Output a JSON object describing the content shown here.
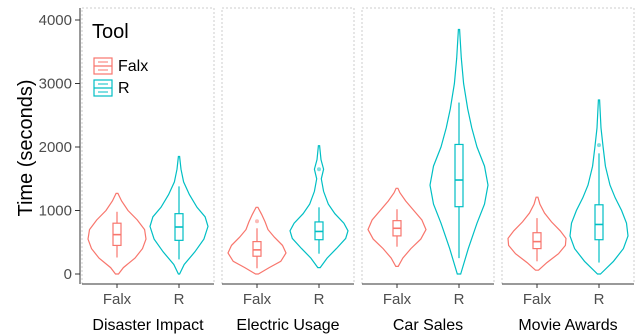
{
  "chart_data": {
    "type": "violin",
    "ylabel": "Time (seconds)",
    "ylim": [
      0,
      4000
    ],
    "yticks": [
      0,
      1000,
      2000,
      3000,
      4000
    ],
    "legend": {
      "title": "Tool",
      "position": "top-left",
      "entries": [
        {
          "name": "Falx",
          "color": "#F8766D"
        },
        {
          "name": "R",
          "color": "#00BFC4"
        }
      ]
    },
    "grid": "none",
    "facets": [
      {
        "label": "Disaster Impact",
        "groups": [
          {
            "tool": "Falx",
            "min": 0,
            "max": 1270,
            "q1": 450,
            "median": 620,
            "q3": 800,
            "whisker_low": 260,
            "whisker_high": 980,
            "density": [
              [
                0,
                0.05
              ],
              [
                100,
                0.22
              ],
              [
                250,
                0.62
              ],
              [
                400,
                0.88
              ],
              [
                550,
                1.0
              ],
              [
                700,
                0.95
              ],
              [
                850,
                0.7
              ],
              [
                1000,
                0.38
              ],
              [
                1150,
                0.16
              ],
              [
                1270,
                0.03
              ]
            ]
          },
          {
            "tool": "R",
            "min": 0,
            "max": 1850,
            "q1": 530,
            "median": 740,
            "q3": 950,
            "whisker_low": 230,
            "whisker_high": 1380,
            "density": [
              [
                0,
                0.02
              ],
              [
                150,
                0.18
              ],
              [
                350,
                0.55
              ],
              [
                550,
                0.86
              ],
              [
                750,
                1.0
              ],
              [
                900,
                0.9
              ],
              [
                1050,
                0.62
              ],
              [
                1250,
                0.36
              ],
              [
                1450,
                0.16
              ],
              [
                1650,
                0.07
              ],
              [
                1850,
                0.02
              ]
            ]
          }
        ]
      },
      {
        "label": "Electric Usage",
        "groups": [
          {
            "tool": "Falx",
            "min": 0,
            "max": 1050,
            "q1": 280,
            "median": 380,
            "q3": 510,
            "whisker_low": 90,
            "whisker_high": 720,
            "outliers": [
              830
            ],
            "density": [
              [
                0,
                0.05
              ],
              [
                100,
                0.42
              ],
              [
                200,
                0.82
              ],
              [
                330,
                1.0
              ],
              [
                450,
                0.88
              ],
              [
                580,
                0.6
              ],
              [
                700,
                0.38
              ],
              [
                820,
                0.28
              ],
              [
                940,
                0.16
              ],
              [
                1050,
                0.03
              ]
            ]
          },
          {
            "tool": "R",
            "min": 100,
            "max": 2020,
            "q1": 540,
            "median": 670,
            "q3": 820,
            "whisker_low": 320,
            "whisker_high": 1050,
            "outliers": [
              1650
            ],
            "density": [
              [
                100,
                0.04
              ],
              [
                250,
                0.28
              ],
              [
                400,
                0.6
              ],
              [
                560,
                0.92
              ],
              [
                680,
                1.0
              ],
              [
                800,
                0.86
              ],
              [
                950,
                0.55
              ],
              [
                1100,
                0.32
              ],
              [
                1300,
                0.16
              ],
              [
                1500,
                0.08
              ],
              [
                1650,
                0.16
              ],
              [
                1800,
                0.07
              ],
              [
                2020,
                0.02
              ]
            ]
          }
        ]
      },
      {
        "label": "Car Sales",
        "groups": [
          {
            "tool": "Falx",
            "min": 120,
            "max": 1350,
            "q1": 600,
            "median": 720,
            "q3": 840,
            "whisker_low": 430,
            "whisker_high": 1020,
            "density": [
              [
                120,
                0.04
              ],
              [
                250,
                0.2
              ],
              [
                400,
                0.48
              ],
              [
                550,
                0.82
              ],
              [
                700,
                1.0
              ],
              [
                850,
                0.86
              ],
              [
                1000,
                0.58
              ],
              [
                1150,
                0.3
              ],
              [
                1280,
                0.1
              ],
              [
                1350,
                0.03
              ]
            ]
          },
          {
            "tool": "R",
            "min": 0,
            "max": 3850,
            "q1": 1060,
            "median": 1480,
            "q3": 2040,
            "whisker_low": 250,
            "whisker_high": 2700,
            "density": [
              [
                0,
                0.06
              ],
              [
                400,
                0.32
              ],
              [
                800,
                0.62
              ],
              [
                1100,
                0.88
              ],
              [
                1400,
                1.0
              ],
              [
                1700,
                0.88
              ],
              [
                2000,
                0.62
              ],
              [
                2300,
                0.44
              ],
              [
                2600,
                0.3
              ],
              [
                3000,
                0.16
              ],
              [
                3400,
                0.08
              ],
              [
                3850,
                0.02
              ]
            ]
          }
        ]
      },
      {
        "label": "Movie Awards",
        "groups": [
          {
            "tool": "Falx",
            "min": 60,
            "max": 1210,
            "q1": 400,
            "median": 510,
            "q3": 650,
            "whisker_low": 200,
            "whisker_high": 880,
            "density": [
              [
                60,
                0.05
              ],
              [
                180,
                0.34
              ],
              [
                320,
                0.74
              ],
              [
                450,
                0.98
              ],
              [
                560,
                1.0
              ],
              [
                680,
                0.8
              ],
              [
                820,
                0.5
              ],
              [
                960,
                0.26
              ],
              [
                1100,
                0.1
              ],
              [
                1210,
                0.03
              ]
            ]
          },
          {
            "tool": "R",
            "min": 0,
            "max": 2740,
            "q1": 540,
            "median": 780,
            "q3": 1090,
            "whisker_low": 180,
            "whisker_high": 1900,
            "outliers": [
              2030
            ],
            "density": [
              [
                0,
                0.05
              ],
              [
                200,
                0.5
              ],
              [
                400,
                0.84
              ],
              [
                600,
                1.0
              ],
              [
                800,
                0.95
              ],
              [
                1000,
                0.78
              ],
              [
                1200,
                0.56
              ],
              [
                1400,
                0.38
              ],
              [
                1700,
                0.22
              ],
              [
                2000,
                0.14
              ],
              [
                2300,
                0.07
              ],
              [
                2740,
                0.02
              ]
            ]
          }
        ]
      }
    ]
  }
}
